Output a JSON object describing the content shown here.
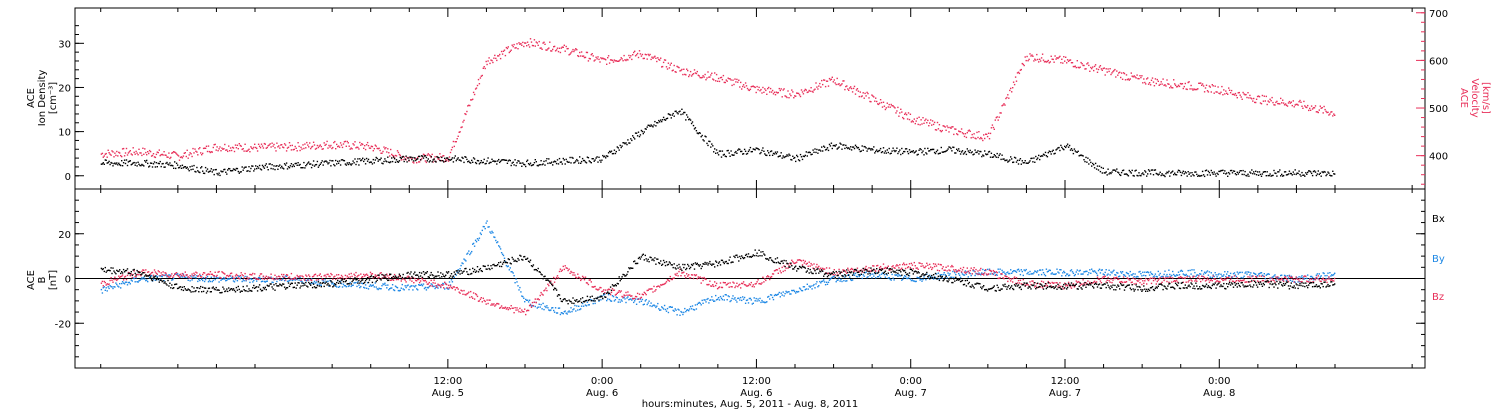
{
  "chart_data": [
    {
      "type": "scatter",
      "title": "",
      "ylabel_lines": [
        "ACE",
        "Ion Density",
        "[cm⁻³]"
      ],
      "ylabel_right_lines": [
        "ACE",
        "Velocity",
        "[km/s]"
      ],
      "ylim": [
        -3,
        38
      ],
      "ylim_right": [
        330,
        710
      ],
      "yticks": [
        0,
        10,
        20,
        30
      ],
      "yticks_right": [
        400,
        500,
        600,
        700
      ],
      "grid": false,
      "colors": {
        "density": "#000000",
        "velocity": "#e8305a"
      },
      "series": [
        {
          "axis": "left",
          "color": "#000000",
          "x": [
            -15,
            -12,
            -9,
            -6,
            -3,
            0,
            3,
            6,
            9,
            12,
            15,
            18,
            21,
            24,
            27,
            30,
            33,
            36,
            39,
            42,
            45,
            48,
            51,
            54,
            57,
            60,
            63,
            66,
            69,
            72,
            75,
            78,
            81
          ],
          "values": [
            3,
            3,
            2.5,
            0.8,
            2,
            2.5,
            3,
            3.5,
            4,
            4,
            3.5,
            3,
            3.5,
            4,
            10,
            15,
            5,
            6,
            4,
            7,
            6,
            5.5,
            6,
            5,
            3,
            7,
            1,
            0.8,
            0.7,
            0.8,
            0.7,
            0.8,
            0.6
          ]
        },
        {
          "axis": "right",
          "color": "#e8305a",
          "x": [
            -15,
            -12,
            -9,
            -6,
            -3,
            0,
            3,
            6,
            9,
            12,
            15,
            18,
            21,
            24,
            27,
            30,
            33,
            36,
            39,
            42,
            45,
            48,
            51,
            54,
            57,
            60,
            63,
            66,
            69,
            72,
            75,
            78,
            81
          ],
          "values": [
            405,
            410,
            400,
            420,
            418,
            420,
            425,
            420,
            395,
            398,
            600,
            640,
            625,
            600,
            615,
            580,
            565,
            540,
            530,
            560,
            520,
            480,
            455,
            440,
            610,
            600,
            580,
            560,
            550,
            540,
            520,
            510,
            490
          ]
        }
      ]
    },
    {
      "type": "scatter",
      "title": "",
      "ylabel_lines": [
        "ACE",
        "B",
        "[nT]"
      ],
      "ylim": [
        -40,
        40
      ],
      "yticks": [
        -20,
        0,
        20
      ],
      "grid": false,
      "legend_placement": "right",
      "zero_line": true,
      "series": [
        {
          "name": "Bx",
          "color": "#000000",
          "x": [
            -15,
            -12,
            -9,
            -6,
            -3,
            0,
            3,
            6,
            9,
            12,
            15,
            18,
            21,
            24,
            27,
            30,
            33,
            36,
            39,
            42,
            45,
            48,
            51,
            54,
            57,
            60,
            63,
            66,
            69,
            72,
            75,
            78,
            81
          ],
          "values": [
            4,
            3,
            -4,
            -5,
            -4,
            -3,
            -2,
            0,
            2,
            2,
            5,
            10,
            -10,
            -8,
            10,
            5,
            7,
            12,
            5,
            2,
            4,
            3,
            0,
            -4,
            -3,
            -3,
            -3,
            -4,
            -3,
            -3,
            -2,
            -3,
            -2
          ]
        },
        {
          "name": "By",
          "color": "#1e88e5",
          "x": [
            -15,
            -12,
            -9,
            -6,
            -3,
            0,
            3,
            6,
            9,
            12,
            15,
            18,
            21,
            24,
            27,
            30,
            33,
            36,
            39,
            42,
            45,
            48,
            51,
            54,
            57,
            60,
            63,
            66,
            69,
            72,
            75,
            78,
            81
          ],
          "values": [
            -5,
            0,
            1,
            0,
            0,
            0,
            -2,
            -3,
            -4,
            -3,
            25,
            -10,
            -15,
            -8,
            -10,
            -15,
            -8,
            -10,
            -5,
            0,
            2,
            0,
            2,
            3,
            3,
            3,
            3,
            2,
            3,
            2,
            2,
            0,
            2
          ]
        },
        {
          "name": "Bz",
          "color": "#e8305a",
          "x": [
            -15,
            -12,
            -9,
            -6,
            -3,
            0,
            3,
            6,
            9,
            12,
            15,
            18,
            21,
            24,
            27,
            30,
            33,
            36,
            39,
            42,
            45,
            48,
            51,
            54,
            57,
            60,
            63,
            66,
            69,
            72,
            75,
            78,
            81
          ],
          "values": [
            -2,
            3,
            2,
            2,
            1,
            1,
            1,
            2,
            0,
            -3,
            -10,
            -15,
            5,
            -5,
            -8,
            3,
            -3,
            -2,
            8,
            3,
            5,
            6,
            5,
            3,
            -2,
            -3,
            0,
            -1,
            0,
            0,
            0,
            0,
            0
          ]
        }
      ]
    }
  ],
  "x_axis": {
    "range": [
      -17,
      88
    ],
    "major_ticks": [
      {
        "x": 12,
        "label_time": "12:00",
        "label_date": "Aug. 5"
      },
      {
        "x": 24,
        "label_time": "0:00",
        "label_date": "Aug. 6"
      },
      {
        "x": 36,
        "label_time": "12:00",
        "label_date": "Aug. 6"
      },
      {
        "x": 48,
        "label_time": "0:00",
        "label_date": "Aug. 7"
      },
      {
        "x": 60,
        "label_time": "12:00",
        "label_date": "Aug. 7"
      },
      {
        "x": 72,
        "label_time": "0:00",
        "label_date": "Aug. 8"
      }
    ],
    "title": "hours:minutes, Aug.  5, 2011 - Aug.  8, 2011"
  },
  "legend_labels": {
    "Bx": "Bx",
    "By": "By",
    "Bz": "Bz"
  }
}
